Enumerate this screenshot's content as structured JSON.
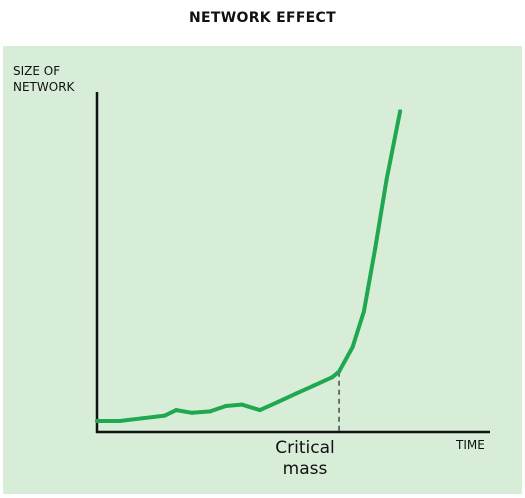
{
  "chart_data": {
    "type": "line",
    "title": "NETWORK EFFECT",
    "ylabel": "SIZE OF NETWORK",
    "xlabel": "TIME",
    "annotation": {
      "text": "Critical mass",
      "x": 10.7
    },
    "xlim": [
      0,
      14.5
    ],
    "ylim": [
      0,
      100
    ],
    "grid": false,
    "series": [
      {
        "color": "#1fa84f",
        "x": [
          0,
          1,
          2,
          3,
          3.5,
          4.2,
          5,
          5.7,
          6.4,
          7.2,
          8,
          8.8,
          9.6,
          10.4,
          10.7,
          11.3,
          11.8,
          12.3,
          12.8,
          13.4
        ],
        "y": [
          4,
          4,
          5,
          6,
          8,
          7,
          7.5,
          9.5,
          10,
          8,
          11,
          14,
          17,
          20,
          22,
          31,
          44,
          67,
          92,
          117
        ]
      }
    ]
  }
}
